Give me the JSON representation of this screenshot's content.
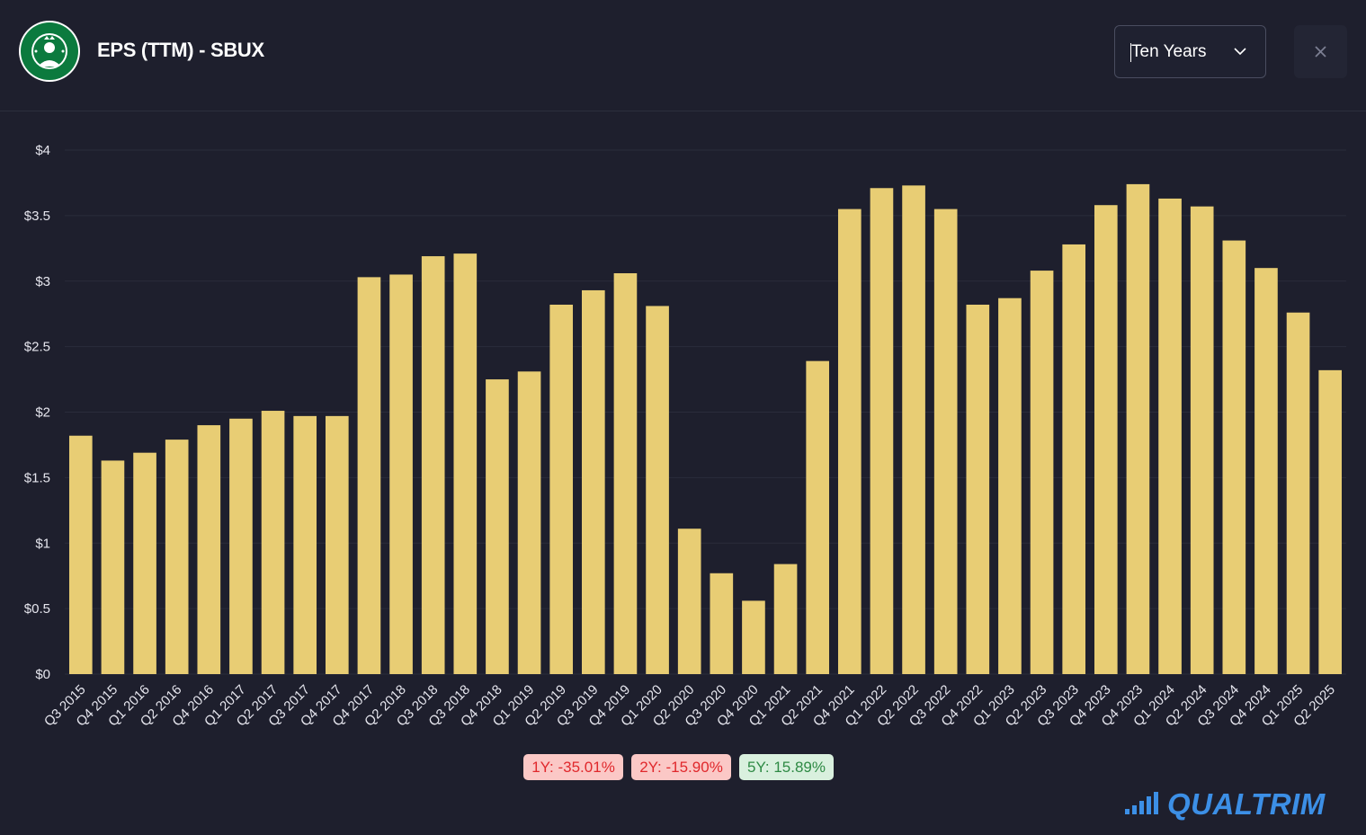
{
  "header": {
    "title": "EPS (TTM) - SBUX",
    "logo_icon": "starbucks-logo-icon",
    "range_select": {
      "value": "Ten Years",
      "icon": "chevron-down-icon"
    },
    "close_icon": "close-icon"
  },
  "chart_data": {
    "type": "bar",
    "title": "EPS (TTM) - SBUX",
    "xlabel": "",
    "ylabel": "",
    "ylim": [
      0,
      4
    ],
    "yticks": [
      "$0",
      "$0.5",
      "$1",
      "$1.5",
      "$2",
      "$2.5",
      "$3",
      "$3.5",
      "$4"
    ],
    "grid": true,
    "bar_color": "#e8cd74",
    "categories": [
      "Q3 2015",
      "Q4 2015",
      "Q1 2016",
      "Q2 2016",
      "Q4 2016",
      "Q1 2017",
      "Q2 2017",
      "Q3 2017",
      "Q4 2017",
      "Q4 2017",
      "Q2 2018",
      "Q3 2018",
      "Q3 2018",
      "Q4 2018",
      "Q1 2019",
      "Q2 2019",
      "Q3 2019",
      "Q4 2019",
      "Q1 2020",
      "Q2 2020",
      "Q3 2020",
      "Q4 2020",
      "Q1 2021",
      "Q2 2021",
      "Q4 2021",
      "Q1 2022",
      "Q2 2022",
      "Q3 2022",
      "Q4 2022",
      "Q1 2023",
      "Q2 2023",
      "Q3 2023",
      "Q4 2023",
      "Q4 2023",
      "Q1 2024",
      "Q2 2024",
      "Q3 2024",
      "Q4 2024",
      "Q1 2025",
      "Q2 2025"
    ],
    "values": [
      1.82,
      1.63,
      1.69,
      1.79,
      1.9,
      1.95,
      2.01,
      1.97,
      1.97,
      3.03,
      3.05,
      3.19,
      3.21,
      2.25,
      2.31,
      2.82,
      2.93,
      3.06,
      2.81,
      1.11,
      0.77,
      0.56,
      0.84,
      2.39,
      3.55,
      3.71,
      3.73,
      3.55,
      2.82,
      2.87,
      3.08,
      3.28,
      3.58,
      3.74,
      3.63,
      3.57,
      3.31,
      3.1,
      2.76,
      2.32
    ]
  },
  "growth": [
    {
      "label": "1Y: -35.01%",
      "tone": "negative"
    },
    {
      "label": "2Y: -15.90%",
      "tone": "negative"
    },
    {
      "label": "5Y: 15.89%",
      "tone": "positive"
    }
  ],
  "brand": {
    "name": "QUALTRIM",
    "icon": "signal-bars-icon",
    "color": "#3c8fe6"
  }
}
